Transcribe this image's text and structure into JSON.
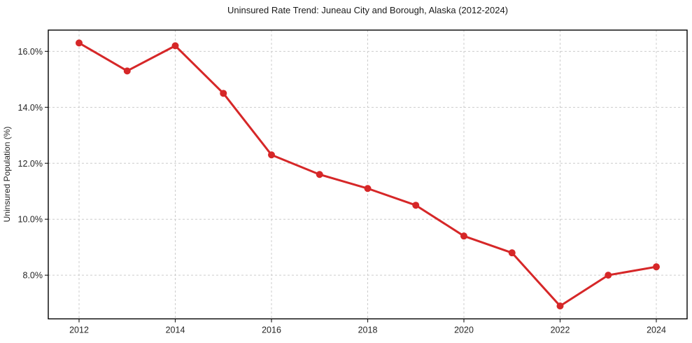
{
  "chart_data": {
    "type": "line",
    "title": "Uninsured Rate Trend: Juneau City and Borough, Alaska (2012-2024)",
    "xlabel": "",
    "ylabel": "Uninsured Population (%)",
    "x": [
      2012,
      2013,
      2014,
      2015,
      2016,
      2017,
      2018,
      2019,
      2020,
      2021,
      2022,
      2023,
      2024
    ],
    "values": [
      16.3,
      15.3,
      16.2,
      14.5,
      12.3,
      11.6,
      11.1,
      10.5,
      9.4,
      8.8,
      6.9,
      8.0,
      8.3
    ],
    "x_ticks": [
      2012,
      2014,
      2016,
      2018,
      2020,
      2022,
      2024
    ],
    "x_tick_labels": [
      "2012",
      "2014",
      "2016",
      "2018",
      "2020",
      "2022",
      "2024"
    ],
    "y_ticks": [
      8,
      10,
      12,
      14,
      16
    ],
    "y_tick_labels": [
      "8.0%",
      "10.0%",
      "12.0%",
      "14.0%",
      "16.0%"
    ],
    "xlim": [
      2011.36,
      2024.64
    ],
    "ylim": [
      6.44,
      16.76
    ],
    "grid": "both-dashed",
    "legend": "none",
    "marker": "circle",
    "colors": {
      "line": "#d62728",
      "marker": "#d62728",
      "grid": "#cccccc",
      "frame": "#000000",
      "text": "#262626",
      "background": "#ffffff"
    }
  }
}
